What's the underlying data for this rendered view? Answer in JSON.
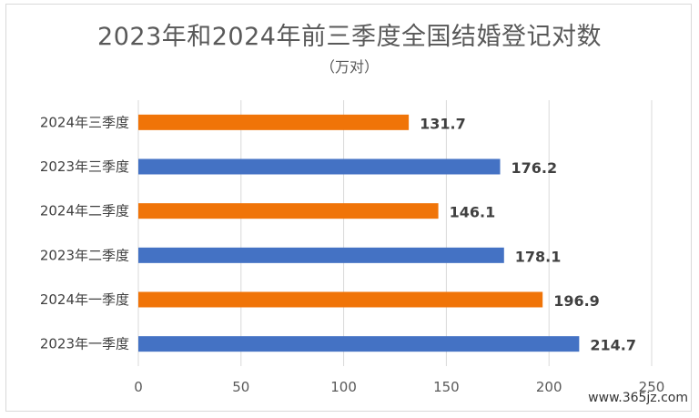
{
  "chart_data": {
    "type": "bar",
    "orientation": "horizontal",
    "title": "2023年和2024年前三季度全国结婚登记对数",
    "subtitle": "（万对）",
    "categories": [
      "2024年三季度",
      "2023年三季度",
      "2024年二季度",
      "2023年二季度",
      "2024年一季度",
      "2023年一季度"
    ],
    "values": [
      131.7,
      176.2,
      146.1,
      178.1,
      196.9,
      214.7
    ],
    "value_labels": [
      "131.7",
      "176.2",
      "146.1",
      "178.1",
      "196.9",
      "214.7"
    ],
    "bar_colors": [
      "#f07408",
      "#4472c4",
      "#f07408",
      "#4472c4",
      "#f07408",
      "#4472c4"
    ],
    "xlim": [
      0,
      250
    ],
    "x_ticks": [
      0,
      50,
      100,
      150,
      200,
      250
    ],
    "grid": "vertical"
  },
  "watermark": "www.365jz.com"
}
